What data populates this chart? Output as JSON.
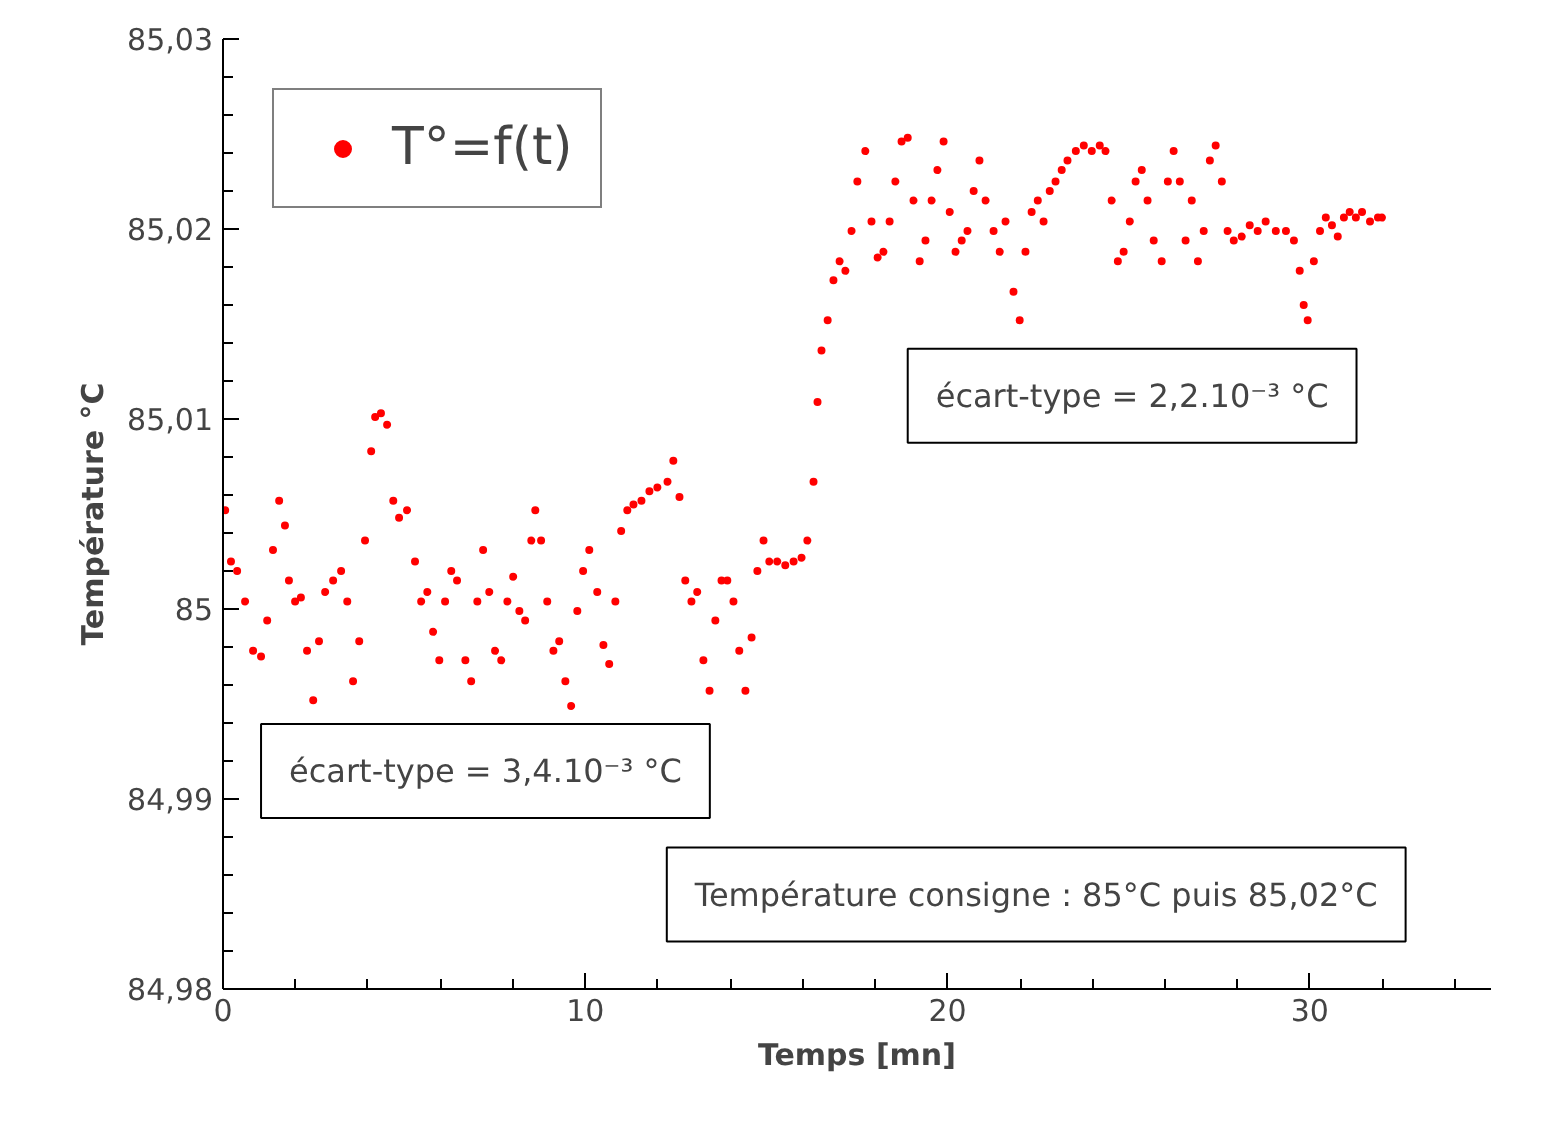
{
  "chart_data": {
    "type": "scatter",
    "xlabel": "Temps [mn]",
    "ylabel": "Température °C",
    "xlim": [
      0,
      35
    ],
    "xticks": [
      0,
      10,
      20,
      30
    ],
    "ylim": [
      84.98,
      85.03
    ],
    "yticks": [
      {
        "value": 84.98,
        "label": "84,98"
      },
      {
        "value": 84.99,
        "label": "84,99"
      },
      {
        "value": 85,
        "label": "85"
      },
      {
        "value": 85.01,
        "label": "85,01"
      },
      {
        "value": 85.02,
        "label": "85,02"
      },
      {
        "value": 85.03,
        "label": "85,03"
      }
    ],
    "grid": false,
    "legend": "top left",
    "marker": "circle",
    "annotations": [
      "écart-type = 3,4.10⁻³ °C",
      "écart-type = 2,2.10⁻³ °C",
      "Température consigne : 85°C puis 85,02°C"
    ],
    "series": [
      {
        "name": "T°=f(t)",
        "color": "#ff0000",
        "x": [
          0.06,
          0.22,
          0.39,
          0.61,
          0.83,
          1.05,
          1.22,
          1.38,
          1.55,
          1.71,
          1.82,
          1.99,
          2.15,
          2.32,
          2.49,
          2.65,
          2.82,
          3.04,
          3.26,
          3.43,
          3.59,
          3.76,
          3.92,
          4.09,
          4.2,
          4.36,
          4.53,
          4.7,
          4.86,
          5.08,
          5.3,
          5.47,
          5.64,
          5.8,
          5.97,
          6.13,
          6.3,
          6.46,
          6.69,
          6.85,
          7.02,
          7.18,
          7.35,
          7.51,
          7.68,
          7.85,
          8.01,
          8.18,
          8.34,
          8.51,
          8.62,
          8.78,
          8.95,
          9.12,
          9.28,
          9.45,
          9.61,
          9.78,
          9.94,
          10.11,
          10.33,
          10.5,
          10.66,
          10.83,
          10.99,
          11.16,
          11.33,
          11.55,
          11.77,
          11.99,
          12.27,
          12.43,
          12.6,
          12.76,
          12.93,
          13.09,
          13.26,
          13.43,
          13.59,
          13.76,
          13.92,
          14.09,
          14.25,
          14.42,
          14.59,
          14.75,
          14.92,
          15.08,
          15.3,
          15.52,
          15.75,
          15.97,
          16.13,
          16.3,
          16.41,
          16.52,
          16.69,
          16.85,
          17.02,
          17.18,
          17.35,
          17.51,
          17.73,
          17.9,
          18.07,
          18.23,
          18.4,
          18.56,
          18.73,
          18.9,
          19.06,
          19.23,
          19.39,
          19.56,
          19.72,
          19.89,
          20.06,
          20.22,
          20.39,
          20.55,
          20.72,
          20.88,
          21.05,
          21.27,
          21.44,
          21.6,
          21.82,
          21.99,
          22.15,
          22.32,
          22.49,
          22.65,
          22.82,
          22.98,
          23.15,
          23.31,
          23.54,
          23.76,
          23.98,
          24.2,
          24.36,
          24.53,
          24.7,
          24.86,
          25.03,
          25.19,
          25.36,
          25.52,
          25.69,
          25.91,
          26.08,
          26.24,
          26.41,
          26.57,
          26.74,
          26.91,
          27.07,
          27.24,
          27.4,
          27.57,
          27.73,
          27.9,
          28.12,
          28.34,
          28.56,
          28.78,
          29.06,
          29.34,
          29.56,
          29.72,
          29.83,
          29.94,
          30.11,
          30.28,
          30.44,
          30.61,
          30.77,
          30.94,
          31.1,
          31.27,
          31.44,
          31.66,
          31.88,
          31.99
        ],
        "values": [
          85.0052,
          85.0025,
          85.002,
          85.0004,
          84.9978,
          84.9975,
          84.9994,
          85.0031,
          85.0057,
          85.0044,
          85.0015,
          85.0004,
          85.0006,
          84.9978,
          84.9952,
          84.9983,
          85.0009,
          85.0015,
          85.002,
          85.0004,
          84.9962,
          84.9983,
          85.0036,
          85.0083,
          85.0101,
          85.0103,
          85.0097,
          85.0057,
          85.0048,
          85.0052,
          85.0025,
          85.0004,
          85.0009,
          84.9988,
          84.9973,
          85.0004,
          85.002,
          85.0015,
          84.9973,
          84.9962,
          85.0004,
          85.0031,
          85.0009,
          84.9978,
          84.9973,
          85.0004,
          85.0017,
          84.9999,
          84.9994,
          85.0036,
          85.0052,
          85.0036,
          85.0004,
          84.9978,
          84.9983,
          84.9962,
          84.9949,
          84.9999,
          85.002,
          85.0031,
          85.0009,
          84.9981,
          84.9971,
          85.0004,
          85.0041,
          85.0052,
          85.0055,
          85.0057,
          85.0062,
          85.0064,
          85.0067,
          85.0078,
          85.0059,
          85.0015,
          85.0004,
          85.0009,
          84.9973,
          84.9957,
          84.9994,
          85.0015,
          85.0015,
          85.0004,
          84.9978,
          84.9957,
          84.9985,
          85.002,
          85.0036,
          85.0025,
          85.0025,
          85.0023,
          85.0025,
          85.0027,
          85.0036,
          85.0067,
          85.0109,
          85.0136,
          85.0152,
          85.0173,
          85.0183,
          85.0178,
          85.0199,
          85.0225,
          85.0241,
          85.0204,
          85.0185,
          85.0188,
          85.0204,
          85.0225,
          85.0246,
          85.0248,
          85.0215,
          85.0183,
          85.0194,
          85.0215,
          85.0231,
          85.0246,
          85.0209,
          85.0188,
          85.0194,
          85.0199,
          85.022,
          85.0236,
          85.0215,
          85.0199,
          85.0188,
          85.0204,
          85.0167,
          85.0152,
          85.0188,
          85.0209,
          85.0215,
          85.0204,
          85.022,
          85.0225,
          85.0231,
          85.0236,
          85.0241,
          85.0244,
          85.0241,
          85.0244,
          85.0241,
          85.0215,
          85.0183,
          85.0188,
          85.0204,
          85.0225,
          85.0231,
          85.0215,
          85.0194,
          85.0183,
          85.0225,
          85.0241,
          85.0225,
          85.0194,
          85.0215,
          85.0183,
          85.0199,
          85.0236,
          85.0244,
          85.0225,
          85.0199,
          85.0194,
          85.0196,
          85.0202,
          85.0199,
          85.0204,
          85.0199,
          85.0199,
          85.0194,
          85.0178,
          85.016,
          85.0152,
          85.0183,
          85.0199,
          85.0206,
          85.0202,
          85.0196,
          85.0206,
          85.0209,
          85.0206,
          85.0209,
          85.0204,
          85.0206,
          85.0206
        ]
      }
    ]
  }
}
